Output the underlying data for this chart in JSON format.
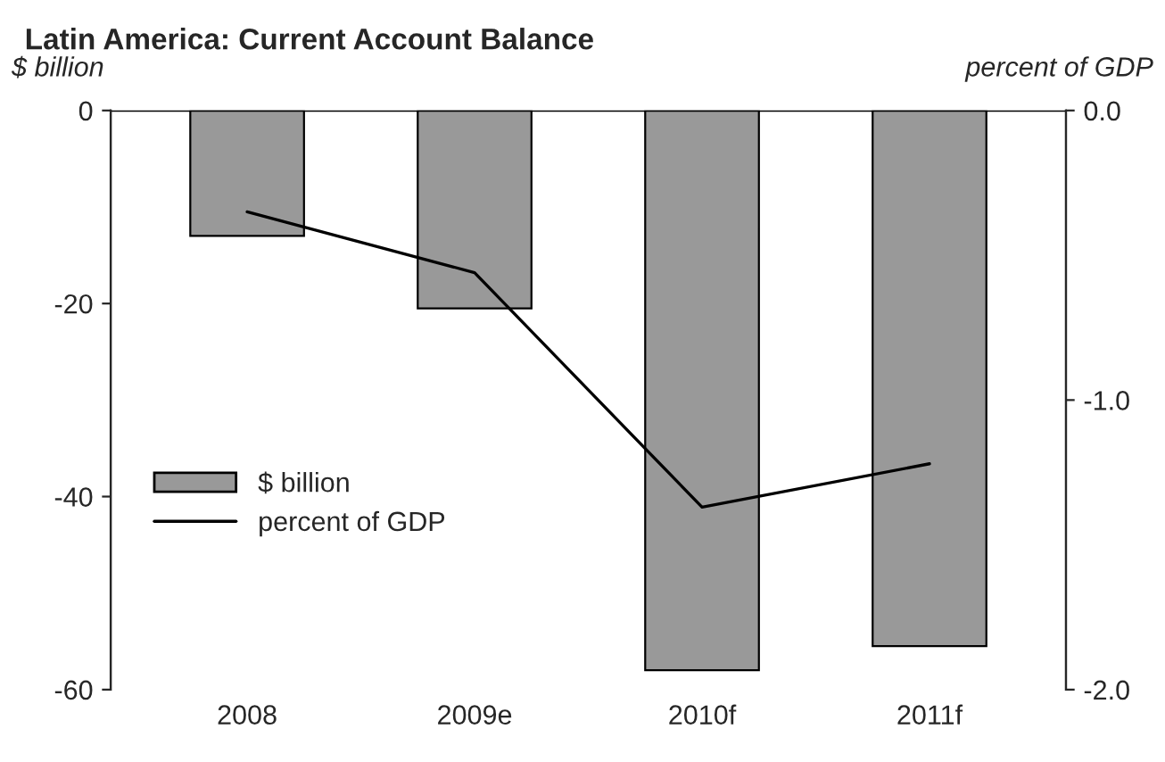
{
  "chart_data": {
    "type": "bar",
    "title": "Latin America: Current Account Balance",
    "ylabel": "$ billion",
    "y2label": "percent of GDP",
    "categories": [
      "2008",
      "2009e",
      "2010f",
      "2011f"
    ],
    "series": [
      {
        "name": "$ billion",
        "color": "#999999",
        "values": [
          -13,
          -20.5,
          -58,
          -55.5
        ]
      },
      {
        "name": "percent of GDP",
        "type": "line",
        "axis": "y2",
        "color": "#000000",
        "values": [
          -0.35,
          -0.56,
          -1.37,
          -1.22
        ]
      }
    ],
    "ylim": [
      -60,
      0
    ],
    "yticks": [
      -60,
      -40,
      -20,
      0
    ],
    "y2lim": [
      -2.0,
      0.0
    ],
    "y2ticks": [
      {
        "value": -2.0,
        "label": "-2.0"
      },
      {
        "value": -1.0,
        "label": "-1.0"
      },
      {
        "value": 0.0,
        "label": "0.0"
      }
    ],
    "grid": false,
    "legend": "left",
    "marker": "none",
    "line_style": "solid"
  }
}
